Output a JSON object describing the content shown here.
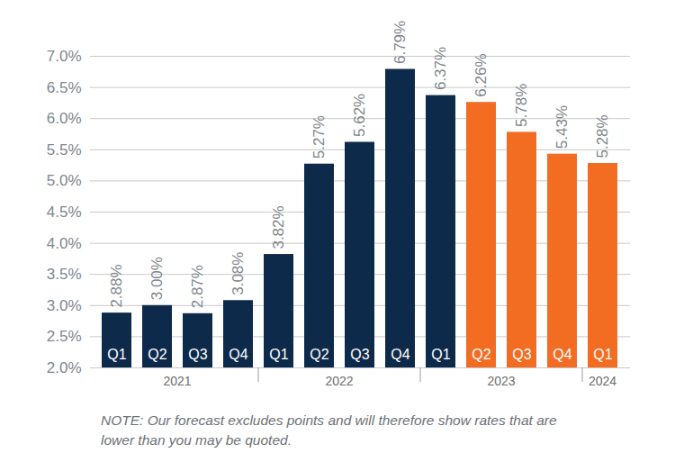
{
  "chart_data": {
    "type": "bar",
    "categories": [
      "Q1",
      "Q2",
      "Q3",
      "Q4",
      "Q1",
      "Q2",
      "Q3",
      "Q4",
      "Q1",
      "Q2",
      "Q3",
      "Q4",
      "Q1"
    ],
    "years": [
      "2021",
      "2021",
      "2021",
      "2021",
      "2022",
      "2022",
      "2022",
      "2022",
      "2023",
      "2023",
      "2023",
      "2023",
      "2024"
    ],
    "values": [
      2.88,
      3.0,
      2.87,
      3.08,
      3.82,
      5.27,
      5.62,
      6.79,
      6.37,
      6.26,
      5.78,
      5.43,
      5.28
    ],
    "value_labels": [
      "2.88%",
      "3.00%",
      "2.87%",
      "3.08%",
      "3.82%",
      "5.27%",
      "5.62%",
      "6.79%",
      "6.37%",
      "6.26%",
      "5.78%",
      "5.43%",
      "5.28%"
    ],
    "colors": [
      "#0e2a4b",
      "#0e2a4b",
      "#0e2a4b",
      "#0e2a4b",
      "#0e2a4b",
      "#0e2a4b",
      "#0e2a4b",
      "#0e2a4b",
      "#0e2a4b",
      "#f26c22",
      "#f26c22",
      "#f26c22",
      "#f26c22"
    ],
    "ylim": [
      2,
      7
    ],
    "yticks": [
      {
        "value": 2,
        "label": "2.0%"
      },
      {
        "value": 2.5,
        "label": "2.5%"
      },
      {
        "value": 3,
        "label": "3.0%"
      },
      {
        "value": 3.5,
        "label": "3.5%"
      },
      {
        "value": 4,
        "label": "4.0%"
      },
      {
        "value": 4.5,
        "label": "4.5%"
      },
      {
        "value": 5,
        "label": "5.0%"
      },
      {
        "value": 5.5,
        "label": "5.5%"
      },
      {
        "value": 6,
        "label": "6.0%"
      },
      {
        "value": 6.5,
        "label": "6.5%"
      },
      {
        "value": 7,
        "label": "7.0%"
      }
    ],
    "grid": true,
    "data_labels": true,
    "note": "NOTE: Our forecast excludes points and will therefore show rates that are lower than you may be quoted."
  }
}
